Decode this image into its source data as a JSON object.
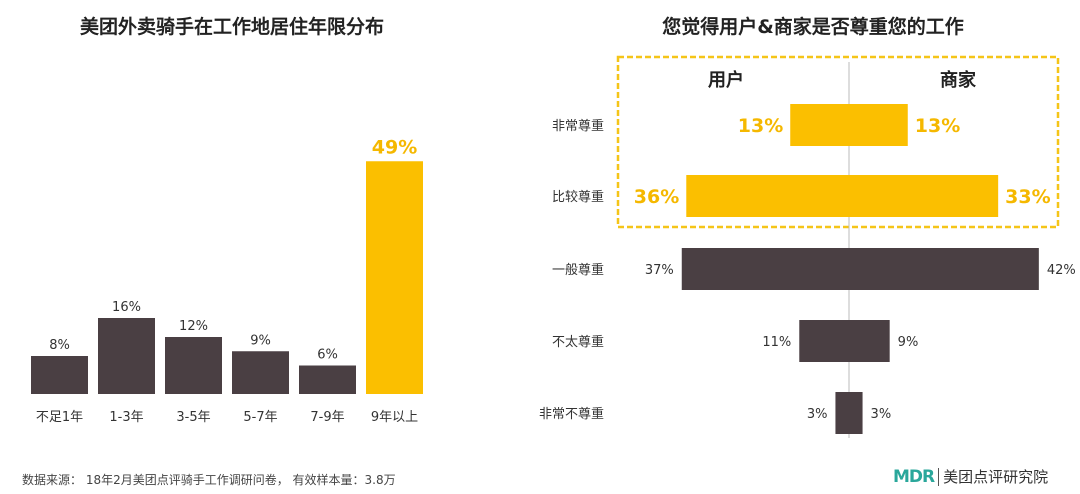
{
  "chart_data": [
    {
      "type": "bar",
      "title": "美团外卖骑手在工作地居住年限分布",
      "categories": [
        "不足1年",
        "1-3年",
        "3-5年",
        "5-7年",
        "7-9年",
        "9年以上"
      ],
      "values": [
        8,
        16,
        12,
        9,
        6,
        49
      ],
      "value_labels": [
        "8%",
        "16%",
        "12%",
        "9%",
        "6%",
        "49%"
      ],
      "highlight_index": 5,
      "colors": {
        "bar": "#4a3f43",
        "highlight": "#fbbf00"
      }
    },
    {
      "type": "bar",
      "orientation": "diverging-horizontal",
      "title": "您觉得用户&商家是否尊重您的工作",
      "categories": [
        "非常尊重",
        "比较尊重",
        "一般尊重",
        "不太尊重",
        "非常不尊重"
      ],
      "series": [
        {
          "name": "用户",
          "values": [
            13,
            36,
            37,
            11,
            3
          ],
          "labels": [
            "13%",
            "36%",
            "37%",
            "11%",
            "3%"
          ]
        },
        {
          "name": "商家",
          "values": [
            13,
            33,
            42,
            9,
            3
          ],
          "labels": [
            "13%",
            "33%",
            "42%",
            "9%",
            "3%"
          ]
        }
      ],
      "highlight_categories": [
        0,
        1
      ],
      "colors": {
        "bar": "#4a3f43",
        "highlight": "#fbbf00",
        "box": "#f5c518"
      }
    }
  ],
  "footer": {
    "source": "数据来源： 18年2月美团点评骑手工作调研问卷， 有效样本量：3.8万",
    "brand_logo": "MDR",
    "brand_name": "美团点评研究院"
  }
}
